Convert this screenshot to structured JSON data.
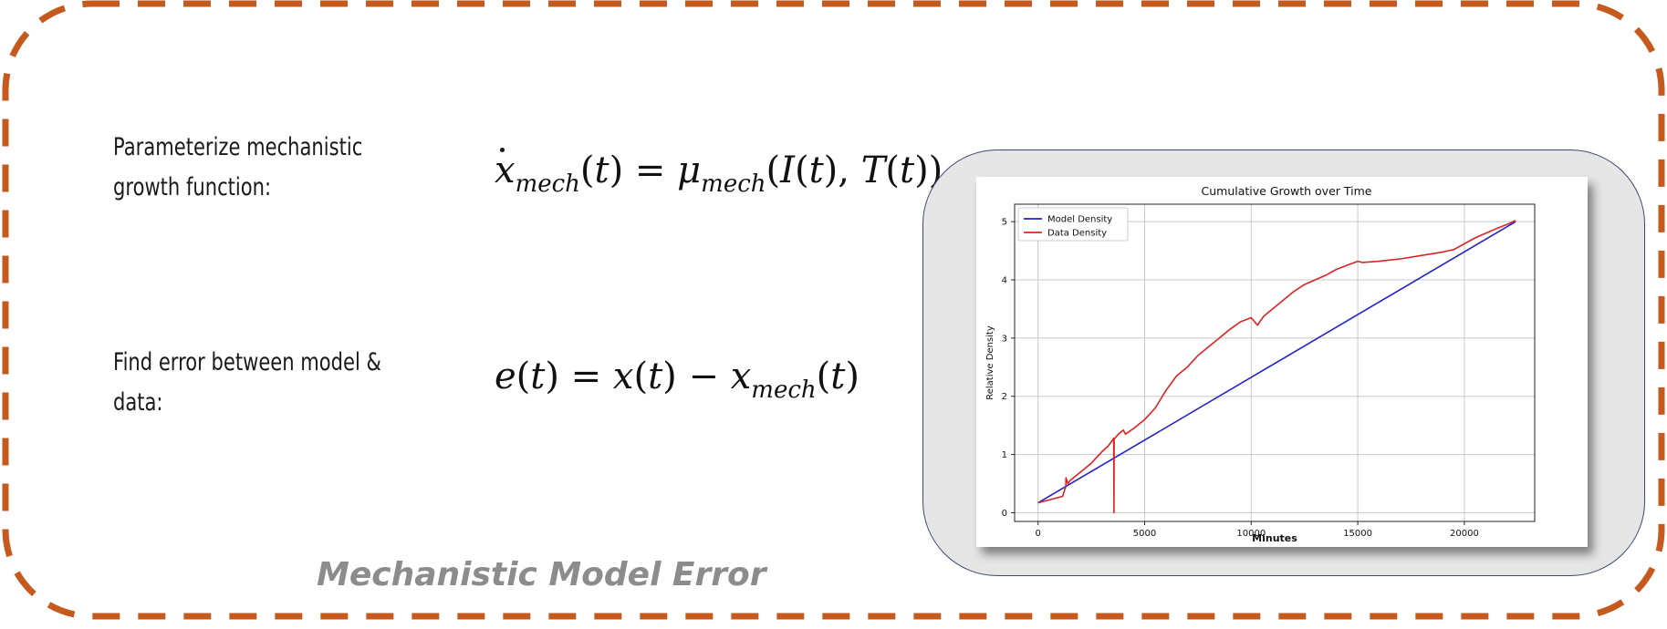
{
  "labels": {
    "parameterize": [
      "Parameterize  mechanistic",
      "growth function:"
    ],
    "find_error": [
      "Find  error  between  model  &",
      "data:"
    ]
  },
  "caption": "Mechanistic Model Error",
  "colors": {
    "border": "#c65a1e",
    "model_line": "#2222cc",
    "data_line": "#dd2222",
    "caption": "#8c8c8c"
  },
  "chart_data": {
    "type": "line",
    "title": "Cumulative Growth over Time",
    "xlabel": "Minutes",
    "ylabel": "Relative Density",
    "xlim": [
      -1100,
      23300
    ],
    "ylim": [
      -0.15,
      5.3
    ],
    "xticks": [
      0,
      5000,
      10000,
      15000,
      20000
    ],
    "yticks": [
      0,
      1,
      2,
      3,
      4,
      5
    ],
    "grid": true,
    "legend": "top-left",
    "series": [
      {
        "name": "Model Density",
        "color": "#2222cc",
        "x": [
          0,
          22400
        ],
        "y": [
          0.17,
          5.0
        ]
      },
      {
        "name": "Data Density",
        "color": "#dd2222",
        "x": [
          0,
          1150,
          1300,
          1310,
          1400,
          1500,
          2000,
          2500,
          3000,
          3300,
          3500,
          3550,
          3560,
          3570,
          3580,
          3700,
          3800,
          4000,
          4100,
          4500,
          5000,
          5500,
          6000,
          6500,
          7000,
          7500,
          8000,
          8500,
          9000,
          9500,
          10000,
          10300,
          10400,
          10600,
          11000,
          11500,
          12000,
          12500,
          13000,
          13500,
          14000,
          14500,
          15000,
          15200,
          16000,
          17000,
          18000,
          19000,
          19500,
          20000,
          20500,
          21000,
          21500,
          22000,
          22400
        ],
        "y": [
          0.17,
          0.28,
          0.45,
          0.6,
          0.5,
          0.55,
          0.7,
          0.85,
          1.05,
          1.15,
          1.25,
          1.28,
          0.0,
          1.28,
          1.27,
          1.32,
          1.36,
          1.42,
          1.35,
          1.45,
          1.6,
          1.8,
          2.1,
          2.35,
          2.5,
          2.7,
          2.85,
          3.0,
          3.15,
          3.28,
          3.35,
          3.22,
          3.28,
          3.38,
          3.5,
          3.65,
          3.8,
          3.92,
          4.0,
          4.08,
          4.18,
          4.25,
          4.32,
          4.3,
          4.32,
          4.36,
          4.42,
          4.48,
          4.52,
          4.62,
          4.72,
          4.8,
          4.88,
          4.95,
          5.02
        ]
      }
    ]
  }
}
